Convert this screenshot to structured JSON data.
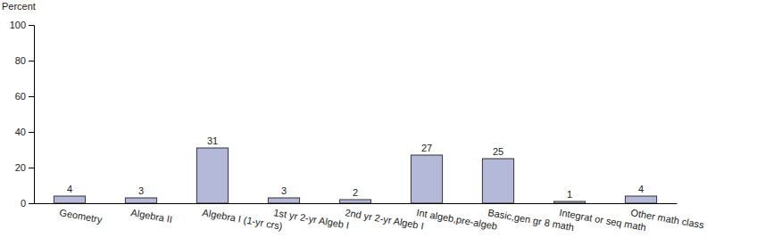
{
  "chart_data": {
    "type": "bar",
    "y_label": "Percent",
    "categories": [
      "Geometry",
      "Algebra II",
      "Algebra I (1-yr crs)",
      "1st yr 2-yr Algeb I",
      "2nd yr 2-yr Algeb I",
      "Int algeb,pre-algeb",
      "Basic,gen gr 8 math",
      "Integrat or seq math",
      "Other math class"
    ],
    "values": [
      4,
      3,
      31,
      3,
      2,
      27,
      25,
      1,
      4
    ],
    "color": "#b4b8d9",
    "ylim": [
      0,
      100
    ],
    "yticks": [
      0,
      20,
      40,
      60,
      80,
      100
    ],
    "grid": false,
    "data_labels": true
  }
}
